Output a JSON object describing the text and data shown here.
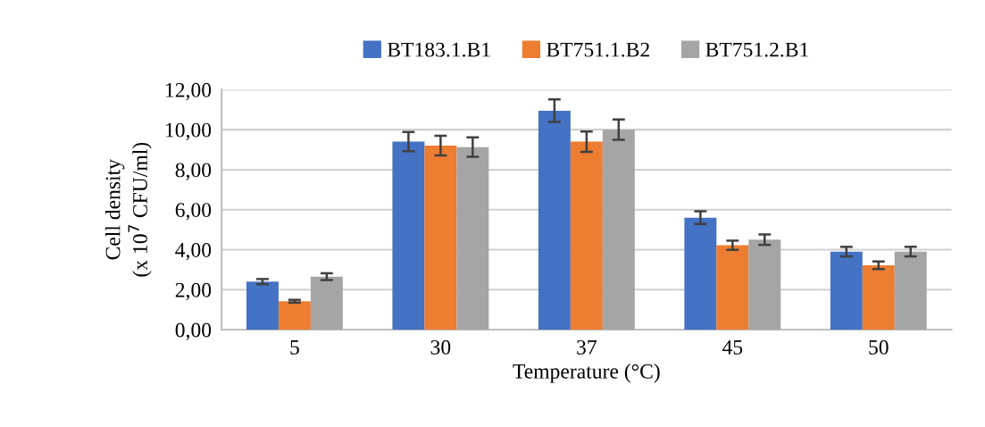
{
  "chart_data": {
    "type": "bar",
    "xlabel": "Temperature (°C)",
    "ylabel": "Cell density\n(x 10$^{7}$ CFU/ml)",
    "categories": [
      "5",
      "30",
      "37",
      "45",
      "50"
    ],
    "series": [
      {
        "name": "BT183.1.B1",
        "color": "#4472c4",
        "values": [
          2.4,
          9.4,
          10.95,
          5.6,
          3.9
        ],
        "errors": [
          0.13,
          0.48,
          0.56,
          0.32,
          0.24
        ]
      },
      {
        "name": "BT751.1.B2",
        "color": "#ed7d31",
        "values": [
          1.42,
          9.2,
          9.4,
          4.22,
          3.22
        ],
        "errors": [
          0.07,
          0.49,
          0.51,
          0.23,
          0.19
        ]
      },
      {
        "name": "BT751.2.B1",
        "color": "#a5a5a5",
        "values": [
          2.65,
          9.13,
          10.0,
          4.5,
          3.9
        ],
        "errors": [
          0.17,
          0.49,
          0.51,
          0.26,
          0.24
        ]
      }
    ],
    "ylim": [
      0,
      12
    ],
    "yticks": [
      {
        "value": 0,
        "label": "0,00"
      },
      {
        "value": 2,
        "label": "2,00"
      },
      {
        "value": 4,
        "label": "4,00"
      },
      {
        "value": 6,
        "label": "6,00"
      },
      {
        "value": 8,
        "label": "8,00"
      },
      {
        "value": 10,
        "label": "10,00"
      },
      {
        "value": 12,
        "label": "12,00"
      }
    ],
    "grid": "y",
    "legend": "top"
  }
}
